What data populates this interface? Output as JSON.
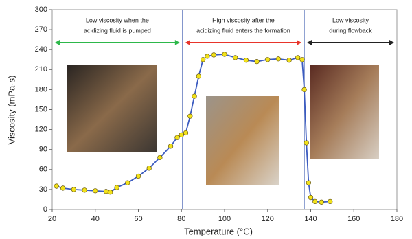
{
  "chart_data": {
    "type": "line",
    "xlabel": "Temperature (°C)",
    "ylabel": "Viscosity (mPa·s)",
    "x": [
      22,
      25,
      30,
      35,
      40,
      45,
      47,
      50,
      55,
      60,
      65,
      70,
      75,
      78,
      80,
      82,
      84,
      86,
      88,
      90,
      92,
      95,
      100,
      105,
      110,
      115,
      120,
      125,
      130,
      134,
      136,
      137,
      138,
      139,
      140,
      142,
      145,
      149
    ],
    "series": [
      {
        "name": "Viscosity",
        "color": "#3b5bc0",
        "marker_color": "#f2e21a",
        "values": [
          35,
          32,
          30,
          29,
          28,
          27,
          26,
          33,
          40,
          50,
          62,
          78,
          95,
          108,
          112,
          115,
          140,
          170,
          200,
          225,
          230,
          232,
          233,
          228,
          224,
          222,
          225,
          226,
          224,
          228,
          225,
          180,
          100,
          40,
          18,
          12,
          11,
          12
        ]
      }
    ],
    "xlim": [
      20,
      180
    ],
    "ylim": [
      0,
      300
    ],
    "xticks": [
      20,
      40,
      60,
      80,
      100,
      120,
      140,
      160,
      180
    ],
    "yticks": [
      0,
      30,
      60,
      90,
      120,
      150,
      180,
      210,
      240,
      270,
      300
    ],
    "vlines": [
      80.5,
      137
    ],
    "vline_color": "#7b8fc9",
    "regions": [
      {
        "lines": [
          "Low viscosity when the",
          "acidizing fluid is pumped"
        ],
        "color": "#2db84a"
      },
      {
        "lines": [
          "High viscosity after the",
          "acidizing fluid enters the formation"
        ],
        "color": "#e8352b"
      },
      {
        "lines": [
          "Low viscosity",
          "during flowback"
        ],
        "color": "#222222"
      }
    ]
  }
}
